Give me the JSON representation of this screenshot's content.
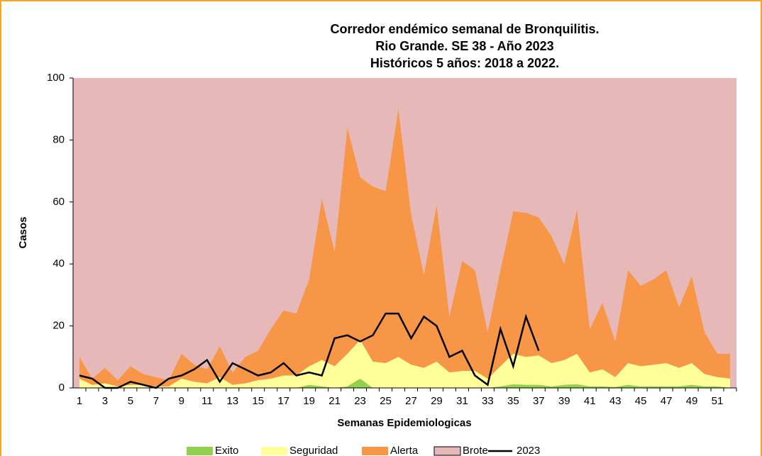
{
  "chart_data": {
    "type": "stacked_area_line",
    "title": [
      "Corredor endémico semanal de Bronquilitis.",
      "Rio Grande. SE 38 - Año 2023",
      "Históricos 5 años: 2018 a 2022."
    ],
    "x_label": "Semanas Epidemiologicas",
    "y_label": "Casos",
    "categories": [
      "1",
      null,
      "3",
      null,
      "5",
      null,
      "7",
      null,
      "9",
      null,
      "11",
      null,
      "13",
      null,
      "15",
      null,
      "17",
      null,
      "19",
      null,
      "21",
      null,
      "23",
      null,
      "25",
      null,
      "27",
      null,
      "29",
      null,
      "31",
      null,
      "33",
      null,
      "35",
      null,
      "37",
      null,
      "39",
      null,
      "41",
      null,
      "43",
      null,
      "45",
      null,
      "47",
      null,
      "49",
      null,
      "51",
      null
    ],
    "ylim": [
      0,
      100
    ],
    "yticks": [
      0,
      20,
      40,
      60,
      80,
      100
    ],
    "series": [
      {
        "name": "Exito",
        "color": "#92d050",
        "kind": "area",
        "values": [
          0,
          0,
          0,
          0,
          0,
          0,
          0,
          0,
          0,
          0,
          0,
          0,
          0,
          0,
          0,
          0,
          0,
          0,
          1,
          0.5,
          0,
          0.5,
          3,
          0,
          0,
          0,
          0,
          0,
          0,
          0,
          0,
          0,
          0,
          0.5,
          1.2,
          1,
          1,
          0.5,
          1,
          1.2,
          0.5,
          0.5,
          0.3,
          1,
          0.5,
          0.5,
          0.5,
          0.5,
          1,
          0.5,
          0.5,
          0
        ]
      },
      {
        "name": "Seguridad",
        "color": "#ffff99",
        "kind": "area",
        "values": [
          3,
          1,
          1.5,
          0.5,
          1,
          1,
          0.5,
          0.5,
          3,
          2,
          1.5,
          3.5,
          1,
          1.5,
          2.5,
          3,
          4,
          4,
          6,
          8.5,
          7,
          10.5,
          12.5,
          8.5,
          8,
          10,
          7.5,
          6.5,
          8.5,
          5,
          5.5,
          5.5,
          3,
          6.5,
          9.8,
          9,
          9.5,
          7.5,
          8,
          9.8,
          4.5,
          5.5,
          3.2,
          7,
          6.5,
          7,
          7.5,
          6,
          7,
          4,
          3,
          3
        ]
      },
      {
        "name": "Alerta",
        "color": "#f79646",
        "kind": "area",
        "values": [
          7,
          2,
          5,
          2,
          6,
          3.5,
          3,
          2,
          8,
          5.5,
          4.5,
          10,
          4,
          8.5,
          9.5,
          16,
          21,
          20,
          28,
          52,
          37,
          73,
          52.5,
          56.5,
          55.5,
          80,
          48.5,
          30,
          50.5,
          18,
          35.5,
          32.5,
          15,
          31,
          46,
          46.5,
          44.5,
          41,
          31,
          46.5,
          14,
          21.5,
          11.5,
          30,
          26,
          27.5,
          30,
          19.5,
          28,
          13.5,
          7.5,
          8
        ]
      },
      {
        "name": "Brote",
        "color": "#e6b8b7",
        "kind": "area",
        "values": [
          90,
          97,
          93.5,
          97.5,
          93,
          95.5,
          96.5,
          97.5,
          89,
          92.5,
          94,
          86.5,
          95,
          90,
          88,
          81,
          75,
          76,
          65,
          39,
          56,
          16,
          32,
          35,
          36.5,
          10,
          44,
          63.5,
          41,
          77,
          59,
          62,
          82,
          62,
          43,
          43.5,
          45,
          51,
          60,
          42.5,
          81,
          72.5,
          85,
          62,
          67,
          65,
          62,
          74,
          64,
          82,
          89,
          89
        ]
      },
      {
        "name": "2023",
        "color": "#000000",
        "kind": "line",
        "values": [
          4,
          3,
          0,
          0,
          2,
          1,
          0,
          3,
          4,
          6,
          9,
          2,
          8,
          6,
          4,
          5,
          8,
          4,
          5,
          4,
          16,
          17,
          15,
          17,
          24,
          24,
          16,
          23,
          20,
          10,
          12,
          4,
          1,
          19,
          7,
          23,
          12,
          null,
          null,
          null,
          null,
          null,
          null,
          null,
          null,
          null,
          null,
          null,
          null,
          null,
          null,
          null
        ]
      }
    ]
  }
}
